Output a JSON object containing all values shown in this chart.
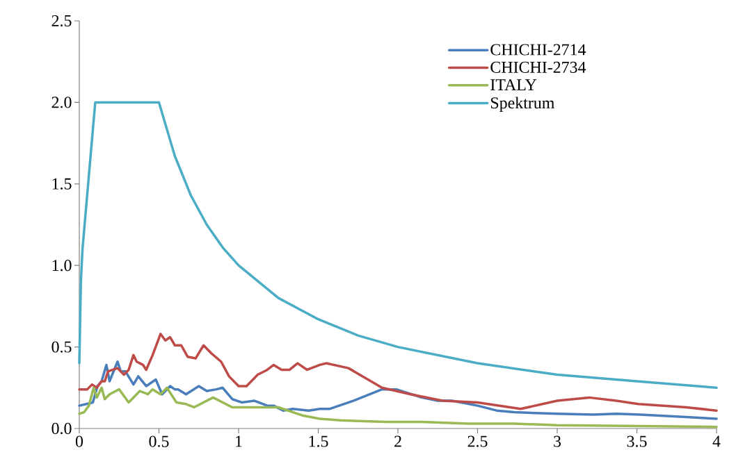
{
  "chart_data": {
    "type": "line",
    "xlim": [
      0,
      4
    ],
    "ylim": [
      0,
      2.5
    ],
    "xticks": [
      0,
      0.5,
      1,
      1.5,
      2,
      2.5,
      3,
      3.5,
      4
    ],
    "yticks": [
      {
        "value": 0,
        "label": "0.0"
      },
      {
        "value": 0.5,
        "label": "0.5"
      },
      {
        "value": 1,
        "label": "1.0"
      },
      {
        "value": 1.5,
        "label": "1.5"
      },
      {
        "value": 2,
        "label": "2.0"
      },
      {
        "value": 2.5,
        "label": "2.5"
      }
    ],
    "legend": "top right",
    "grid": false,
    "marker": "none",
    "line_style": "solid",
    "series": [
      {
        "name": "CHICHI-2714",
        "color": "#4a7ebb",
        "x": [
          0,
          0.085,
          0.114,
          0.14,
          0.17,
          0.19,
          0.24,
          0.26,
          0.29,
          0.34,
          0.37,
          0.42,
          0.48,
          0.52,
          0.57,
          0.6,
          0.62,
          0.67,
          0.75,
          0.8,
          0.86,
          0.9,
          0.96,
          1.02,
          1.1,
          1.18,
          1.22,
          1.28,
          1.34,
          1.44,
          1.51,
          1.57,
          1.72,
          1.9,
          1.99,
          2.15,
          2.25,
          2.34,
          2.5,
          2.62,
          2.73,
          3.0,
          3.23,
          3.37,
          3.52,
          3.81,
          4.0
        ],
        "values": [
          0.14,
          0.16,
          0.26,
          0.29,
          0.39,
          0.29,
          0.41,
          0.35,
          0.35,
          0.27,
          0.32,
          0.26,
          0.3,
          0.21,
          0.26,
          0.24,
          0.24,
          0.21,
          0.26,
          0.23,
          0.24,
          0.25,
          0.18,
          0.16,
          0.17,
          0.14,
          0.14,
          0.11,
          0.12,
          0.11,
          0.12,
          0.12,
          0.17,
          0.24,
          0.24,
          0.19,
          0.17,
          0.17,
          0.14,
          0.11,
          0.1,
          0.09,
          0.085,
          0.09,
          0.085,
          0.07,
          0.06
        ]
      },
      {
        "name": "CHICHI-2734",
        "color": "#be4b48",
        "x": [
          0,
          0.05,
          0.08,
          0.11,
          0.14,
          0.16,
          0.18,
          0.21,
          0.24,
          0.28,
          0.31,
          0.34,
          0.36,
          0.4,
          0.42,
          0.46,
          0.51,
          0.54,
          0.57,
          0.6,
          0.64,
          0.68,
          0.73,
          0.78,
          0.83,
          0.89,
          0.94,
          1.0,
          1.05,
          1.12,
          1.18,
          1.22,
          1.27,
          1.32,
          1.37,
          1.43,
          1.51,
          1.55,
          1.69,
          1.9,
          2.08,
          2.28,
          2.5,
          2.77,
          3.0,
          3.2,
          3.37,
          3.51,
          3.81,
          4.0
        ],
        "values": [
          0.24,
          0.24,
          0.27,
          0.25,
          0.29,
          0.29,
          0.35,
          0.36,
          0.37,
          0.33,
          0.36,
          0.45,
          0.41,
          0.39,
          0.36,
          0.45,
          0.58,
          0.54,
          0.56,
          0.51,
          0.51,
          0.44,
          0.43,
          0.51,
          0.46,
          0.41,
          0.32,
          0.26,
          0.26,
          0.33,
          0.36,
          0.39,
          0.36,
          0.36,
          0.4,
          0.36,
          0.39,
          0.4,
          0.37,
          0.25,
          0.21,
          0.17,
          0.16,
          0.12,
          0.17,
          0.19,
          0.17,
          0.15,
          0.13,
          0.11
        ]
      },
      {
        "name": "ITALY",
        "color": "#98b954",
        "x": [
          0,
          0.03,
          0.06,
          0.09,
          0.11,
          0.14,
          0.16,
          0.19,
          0.25,
          0.31,
          0.38,
          0.43,
          0.46,
          0.51,
          0.55,
          0.61,
          0.67,
          0.72,
          0.84,
          0.96,
          1.1,
          1.25,
          1.4,
          1.51,
          1.64,
          1.93,
          2.15,
          2.44,
          2.73,
          3.0,
          4.0
        ],
        "values": [
          0.09,
          0.1,
          0.14,
          0.25,
          0.19,
          0.25,
          0.18,
          0.21,
          0.24,
          0.16,
          0.23,
          0.21,
          0.24,
          0.21,
          0.25,
          0.16,
          0.15,
          0.13,
          0.19,
          0.13,
          0.13,
          0.13,
          0.08,
          0.06,
          0.05,
          0.04,
          0.04,
          0.03,
          0.03,
          0.02,
          0.01
        ]
      },
      {
        "name": "Spektrum",
        "color": "#4bacc6",
        "x": [
          0,
          0.01,
          0.02,
          0.1,
          0.5,
          0.6,
          0.7,
          0.8,
          0.9,
          1.0,
          1.25,
          1.5,
          1.75,
          2.0,
          2.5,
          3.0,
          3.5,
          4.0
        ],
        "values": [
          0.4,
          0.9,
          1.1,
          2.0,
          2.0,
          1.67,
          1.43,
          1.25,
          1.11,
          1.0,
          0.8,
          0.67,
          0.57,
          0.5,
          0.4,
          0.33,
          0.29,
          0.25
        ]
      }
    ]
  }
}
